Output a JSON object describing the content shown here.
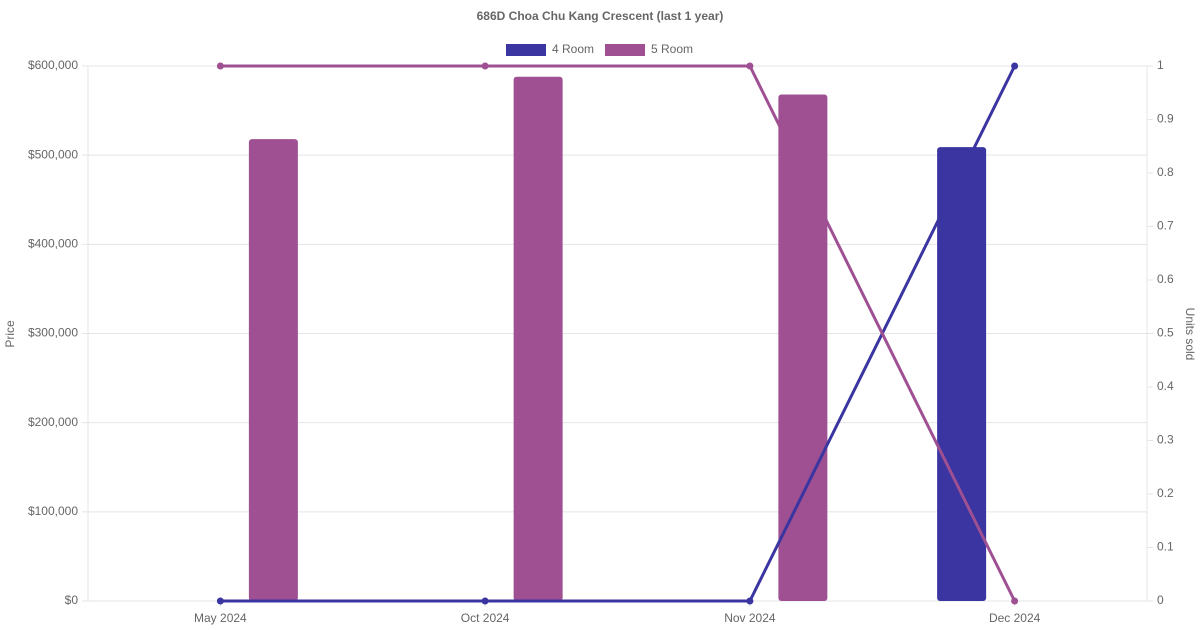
{
  "chart_data": {
    "type": "bar",
    "title": "686D Choa Chu Kang Crescent (last 1 year)",
    "y_label": "Price",
    "y2_label": "Units sold",
    "categories": [
      "May 2024",
      "Oct 2024",
      "Nov 2024",
      "Dec 2024"
    ],
    "series": [
      {
        "name": "4 Room",
        "color": "#3a35a0",
        "values": [
          null,
          null,
          null,
          509000
        ],
        "units": [
          0,
          0,
          0,
          1
        ]
      },
      {
        "name": "5 Room",
        "color": "#9e5093",
        "values": [
          518000,
          588000,
          568000,
          null
        ],
        "units": [
          1,
          1,
          1,
          0
        ]
      }
    ],
    "ylim": [
      0,
      600000
    ],
    "yticks": [
      {
        "value": 0,
        "label": "$0"
      },
      {
        "value": 100000,
        "label": "$100,000"
      },
      {
        "value": 200000,
        "label": "$200,000"
      },
      {
        "value": 300000,
        "label": "$300,000"
      },
      {
        "value": 400000,
        "label": "$400,000"
      },
      {
        "value": 500000,
        "label": "$500,000"
      },
      {
        "value": 600000,
        "label": "$600,000"
      }
    ],
    "y2lim": [
      0,
      1
    ],
    "y2ticks": [
      0,
      0.1,
      0.2,
      0.3,
      0.4,
      0.5,
      0.6,
      0.7,
      0.8,
      0.9,
      1
    ],
    "grid": true
  }
}
